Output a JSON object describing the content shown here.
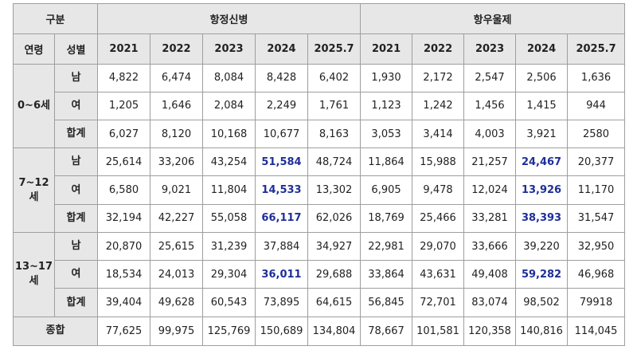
{
  "table": {
    "header": {
      "corner": "구분",
      "group1": "항정신병",
      "group2": "항우울제"
    },
    "subheader": {
      "age": "연령",
      "sex": "성별",
      "years": [
        "2021",
        "2022",
        "2023",
        "2024",
        "2025.7"
      ]
    },
    "age_groups": [
      {
        "label": "0~6세",
        "rows": [
          {
            "sex": "남",
            "g1": [
              "4,822",
              "6,474",
              "8,084",
              "8,428",
              "6,402"
            ],
            "g2": [
              "1,930",
              "2,172",
              "2,547",
              "2,506",
              "1,636"
            ]
          },
          {
            "sex": "여",
            "g1": [
              "1,205",
              "1,646",
              "2,084",
              "2,249",
              "1,761"
            ],
            "g2": [
              "1,123",
              "1,242",
              "1,456",
              "1,415",
              "944"
            ]
          },
          {
            "sex": "합계",
            "g1": [
              "6,027",
              "8,120",
              "10,168",
              "10,677",
              "8,163"
            ],
            "g2": [
              "3,053",
              "3,414",
              "4,003",
              "3,921",
              "2580"
            ]
          }
        ]
      },
      {
        "label": "7~12 세",
        "rows": [
          {
            "sex": "남",
            "g1": [
              "25,614",
              "33,206",
              "43,254",
              "51,584",
              "48,724"
            ],
            "g2": [
              "11,864",
              "15,988",
              "21,257",
              "24,467",
              "20,377"
            ]
          },
          {
            "sex": "여",
            "g1": [
              "6,580",
              "9,021",
              "11,804",
              "14,533",
              "13,302"
            ],
            "g2": [
              "6,905",
              "9,478",
              "12,024",
              "13,926",
              "11,170"
            ]
          },
          {
            "sex": "합계",
            "g1": [
              "32,194",
              "42,227",
              "55,058",
              "66,117",
              "62,026"
            ],
            "g2": [
              "18,769",
              "25,466",
              "33,281",
              "38,393",
              "31,547"
            ]
          }
        ]
      },
      {
        "label": "13~17 세",
        "rows": [
          {
            "sex": "남",
            "g1": [
              "20,870",
              "25,615",
              "31,239",
              "37,884",
              "34,927"
            ],
            "g2": [
              "22,981",
              "29,070",
              "33,666",
              "39,220",
              "32,950"
            ]
          },
          {
            "sex": "여",
            "g1": [
              "18,534",
              "24,013",
              "29,304",
              "36,011",
              "29,688"
            ],
            "g2": [
              "33,864",
              "43,631",
              "49,408",
              "59,282",
              "46,968"
            ]
          },
          {
            "sex": "합계",
            "g1": [
              "39,404",
              "49,628",
              "60,543",
              "73,895",
              "64,615"
            ],
            "g2": [
              "56,845",
              "72,701",
              "83,074",
              "98,502",
              "79918"
            ]
          }
        ]
      }
    ],
    "total": {
      "label": "종합",
      "g1": [
        "77,625",
        "99,975",
        "125,769",
        "150,689",
        "134,804"
      ],
      "g2": [
        "78,667",
        "101,581",
        "120,358",
        "140,816",
        "114,045"
      ]
    },
    "highlight_color": "#1f2f99",
    "header_background": "#e7e7e7"
  }
}
